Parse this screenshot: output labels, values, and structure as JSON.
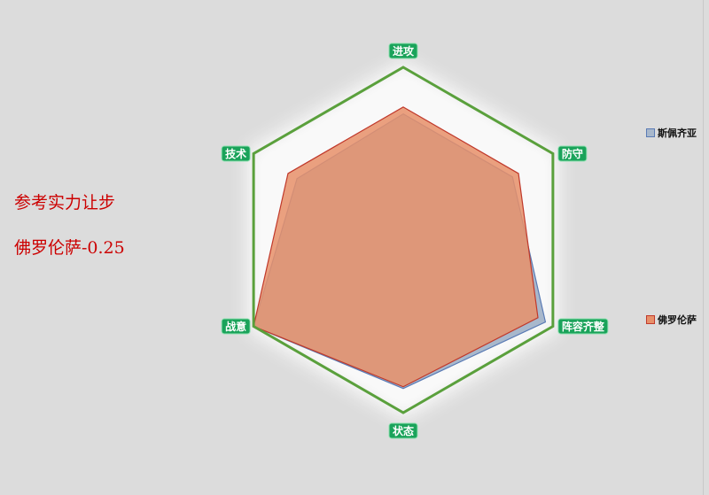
{
  "notes": {
    "line1": "参考实力让步",
    "line2": "佛罗伦萨-0.25"
  },
  "chart_data": {
    "type": "radar",
    "axes": [
      "进攻",
      "防守",
      "阵容齐整",
      "状态",
      "战意",
      "技术"
    ],
    "range": [
      0,
      100
    ],
    "series": [
      {
        "name": "斯佩齐亚",
        "values": [
          73,
          73,
          95,
          86,
          100,
          71
        ],
        "color": "#5a7bb5",
        "fill": "#a8b8cc"
      },
      {
        "name": "佛罗伦萨",
        "values": [
          77,
          77,
          90,
          85,
          100,
          77
        ],
        "color": "#c0392b",
        "fill": "#e8906a"
      }
    ],
    "grid_color": "#5aa03c",
    "label_bg": "#1aa35a",
    "legend_position": "right"
  }
}
